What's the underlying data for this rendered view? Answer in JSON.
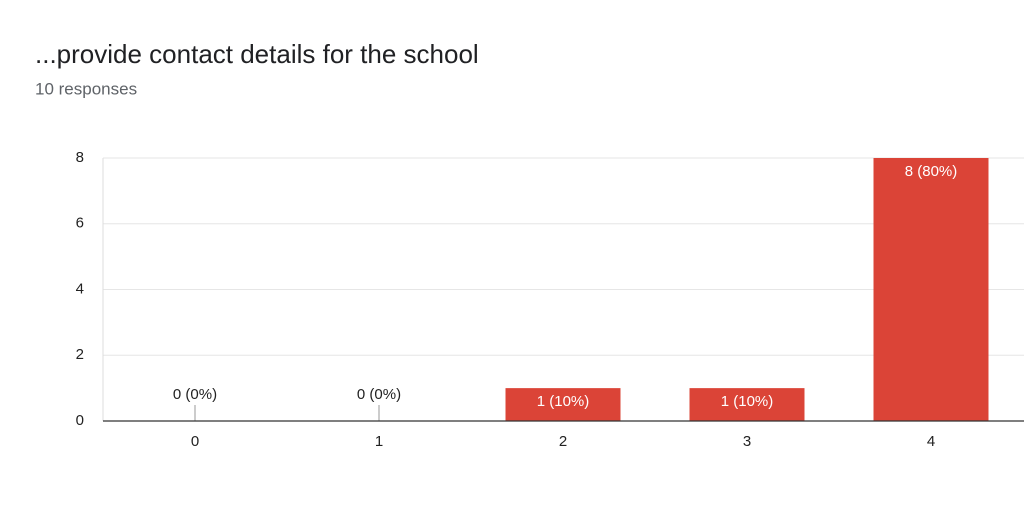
{
  "chart_data": {
    "type": "bar",
    "title": "...provide contact details for the school",
    "subtitle": "10 responses",
    "categories": [
      "0",
      "1",
      "2",
      "3",
      "4"
    ],
    "values": [
      0,
      0,
      1,
      1,
      8
    ],
    "value_labels": [
      "0 (0%)",
      "0 (0%)",
      "1 (10%)",
      "1 (10%)",
      "8 (80%)"
    ],
    "color": "#db4437",
    "ylim": [
      0,
      8
    ],
    "yticks": [
      0,
      2,
      4,
      6,
      8
    ],
    "grid": true
  }
}
